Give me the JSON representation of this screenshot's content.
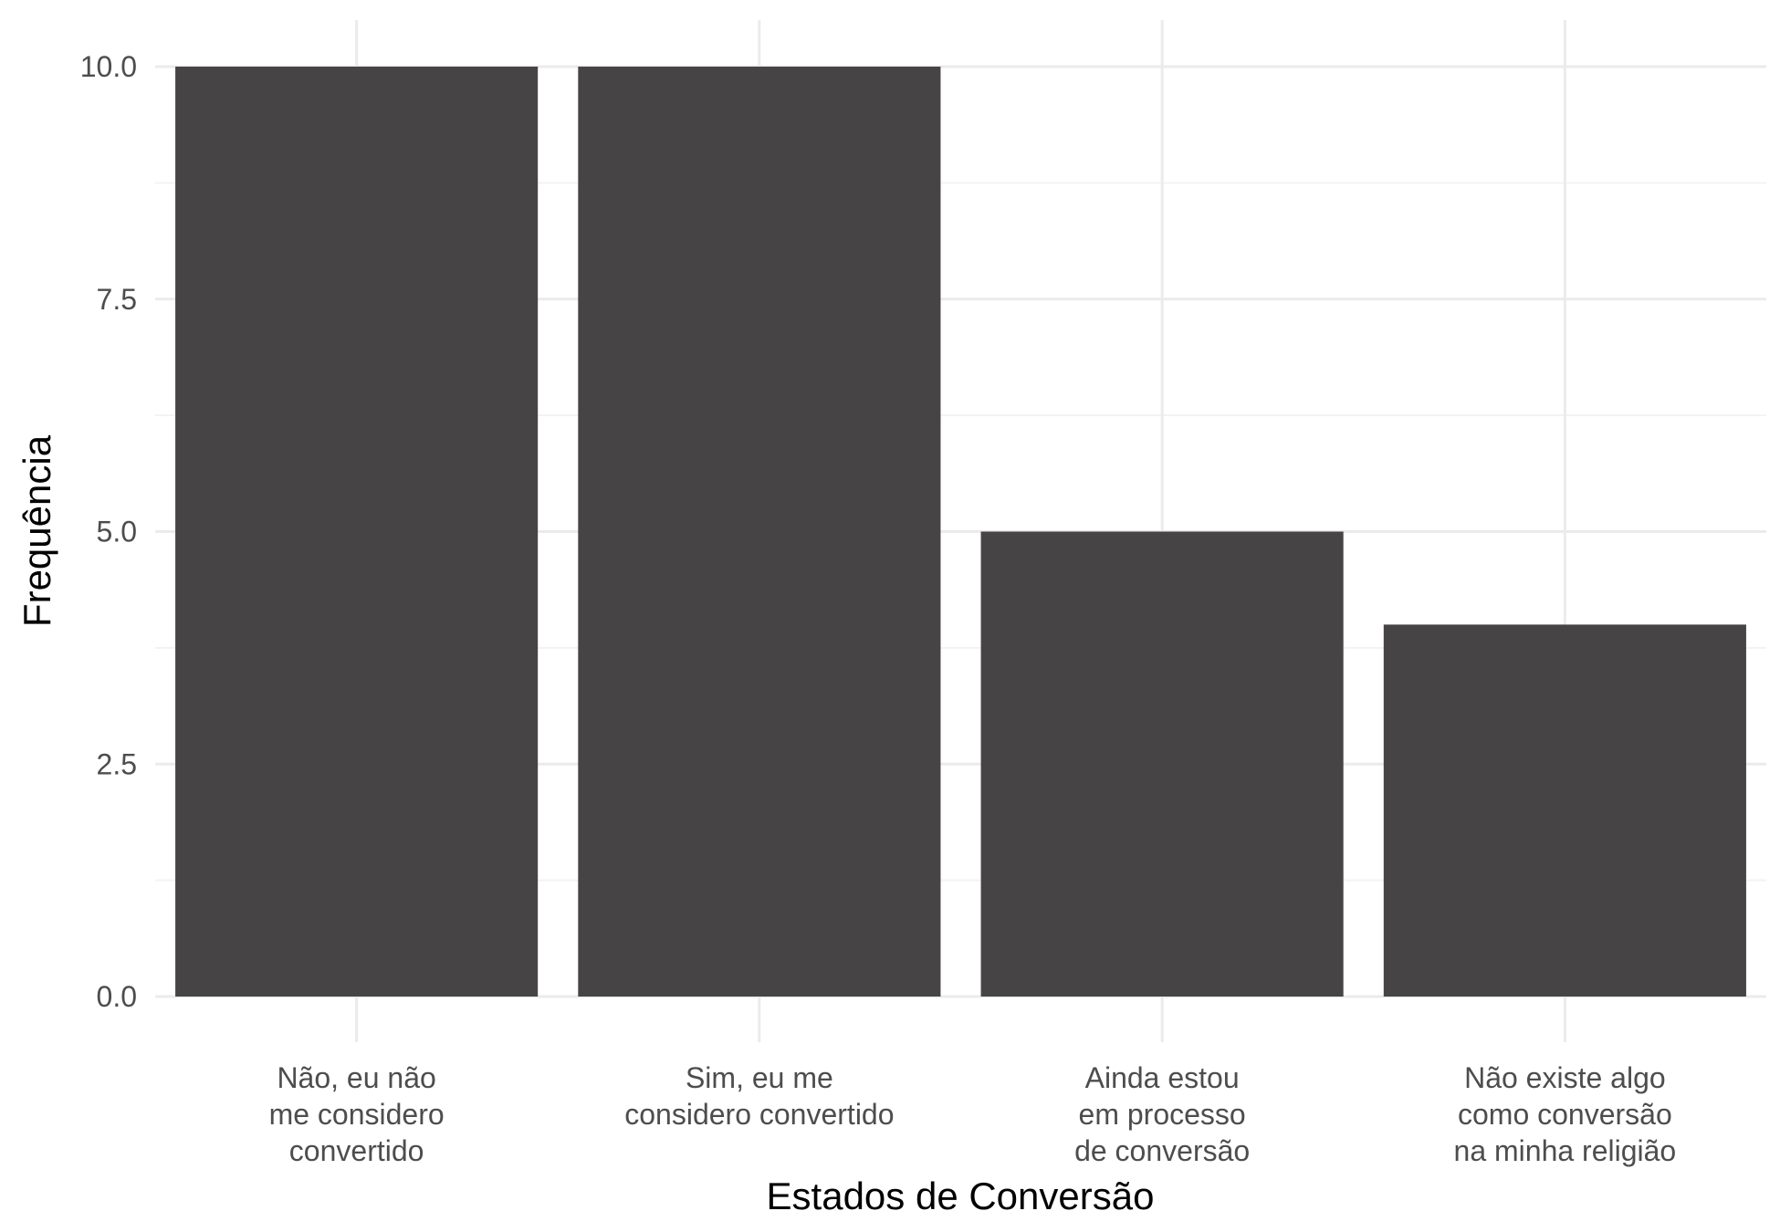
{
  "chart_data": {
    "type": "bar",
    "categories": [
      [
        "Não, eu não",
        "me considero",
        "convertido"
      ],
      [
        "Sim, eu me",
        "considero convertido"
      ],
      [
        "Ainda estou",
        "em processo",
        "de conversão"
      ],
      [
        "Não existe algo",
        "como conversão",
        "na minha religião"
      ]
    ],
    "values": [
      10,
      10,
      5,
      4
    ],
    "xlabel": "Estados de Conversão",
    "ylabel": "Frequência",
    "ylim": [
      0,
      10.5
    ],
    "yticks": [
      0,
      2.5,
      5,
      7.5,
      10
    ],
    "ytick_labels": [
      "0.0",
      "2.5",
      "5.0",
      "7.5",
      "10.0"
    ],
    "grid": true,
    "colors": {
      "bar": "#474445",
      "grid_major": "#ebebeb",
      "grid_minor": "#f3f3f3"
    }
  }
}
